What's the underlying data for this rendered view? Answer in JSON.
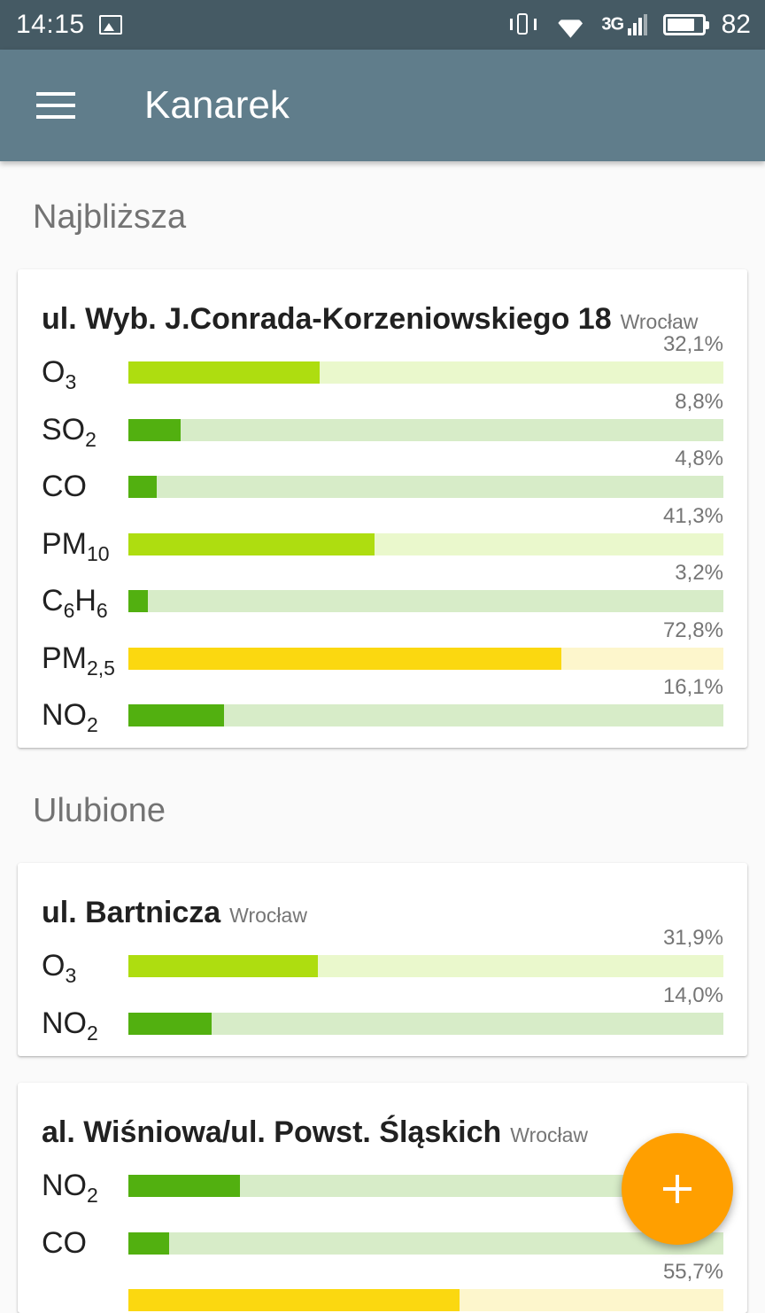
{
  "status_bar": {
    "time": "14:15",
    "network": "3G",
    "battery": "82",
    "battery_level": 0.82,
    "icons": [
      "image-icon",
      "vibrate-icon",
      "wifi-icon",
      "signal-icon",
      "battery-icon"
    ]
  },
  "app_bar": {
    "title": "Kanarek",
    "color": "#607d8b"
  },
  "sections": {
    "nearest": {
      "title": "Najbliższa",
      "stations": [
        {
          "name": "ul. Wyb. J.Conrada-Korzeniowskiego 18",
          "city": "Wrocław",
          "rows": [
            {
              "main": "O",
              "sub": "3",
              "pct": "32,1%",
              "value": 32.1,
              "level": "lime"
            },
            {
              "main": "SO",
              "sub": "2",
              "pct": "8,8%",
              "value": 8.8,
              "level": "dark"
            },
            {
              "main": "CO",
              "sub": "",
              "pct": "4,8%",
              "value": 4.8,
              "level": "dark"
            },
            {
              "main": "PM",
              "sub": "10",
              "pct": "41,3%",
              "value": 41.3,
              "level": "lime"
            },
            {
              "main": "C",
              "sub": "6",
              "main2": "H",
              "sub2": "6",
              "pct": "3,2%",
              "value": 3.2,
              "level": "dark"
            },
            {
              "main": "PM",
              "sub": "2,5",
              "pct": "72,8%",
              "value": 72.8,
              "level": "yel"
            },
            {
              "main": "NO",
              "sub": "2",
              "pct": "16,1%",
              "value": 16.1,
              "level": "dark"
            }
          ]
        }
      ]
    },
    "favourites": {
      "title": "Ulubione",
      "stations": [
        {
          "name": "ul. Bartnicza",
          "city": "Wrocław",
          "rows": [
            {
              "main": "O",
              "sub": "3",
              "pct": "31,9%",
              "value": 31.9,
              "level": "lime"
            },
            {
              "main": "NO",
              "sub": "2",
              "pct": "14,0%",
              "value": 14.0,
              "level": "dark"
            }
          ]
        },
        {
          "name": "al. Wiśniowa/ul. Powst. Śląskich",
          "city": "Wrocław",
          "rows": [
            {
              "main": "NO",
              "sub": "2",
              "pct": "",
              "value": 18.8,
              "level": "dark"
            },
            {
              "main": "CO",
              "sub": "",
              "pct": "",
              "value": 6.9,
              "level": "dark"
            },
            {
              "main": "",
              "sub": "",
              "pct": "55,7%",
              "value": 55.7,
              "level": "yel"
            }
          ]
        }
      ]
    }
  },
  "fab": {
    "symbol": "+",
    "icon": "add-icon",
    "color": "#ff9f00"
  },
  "colors": {
    "dark_fill": "#52b010",
    "dark_track": "#d7ecc8",
    "lime_fill": "#aedd10",
    "lime_track": "#eaf8cc",
    "yellow_fill": "#fbd810",
    "yellow_track": "#fdf6cc"
  }
}
